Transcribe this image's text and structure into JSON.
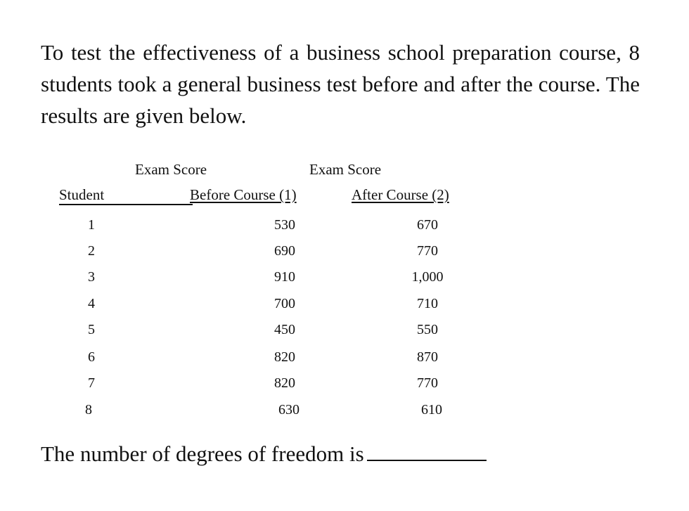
{
  "intro": "To test the effectiveness of a business school preparation course, 8 students took a general business test before and after the course. The results are given below.",
  "table": {
    "group_header_1": "Exam Score",
    "group_header_2": "Exam Score",
    "col_student": "Student",
    "col_before": "Before Course (1)",
    "col_after": "After Course (2)",
    "rows": [
      {
        "student": "1",
        "before": "530",
        "after": "670"
      },
      {
        "student": "2",
        "before": "690",
        "after": "770"
      },
      {
        "student": "3",
        "before": "910",
        "after": "1,000"
      },
      {
        "student": "4",
        "before": "700",
        "after": "710"
      },
      {
        "student": "5",
        "before": "450",
        "after": "550"
      },
      {
        "student": "6",
        "before": "820",
        "after": "870"
      },
      {
        "student": "7",
        "before": "820",
        "after": "770"
      },
      {
        "student": "8",
        "before": "630",
        "after": "610"
      }
    ]
  },
  "question": "The number of degrees of freedom is"
}
